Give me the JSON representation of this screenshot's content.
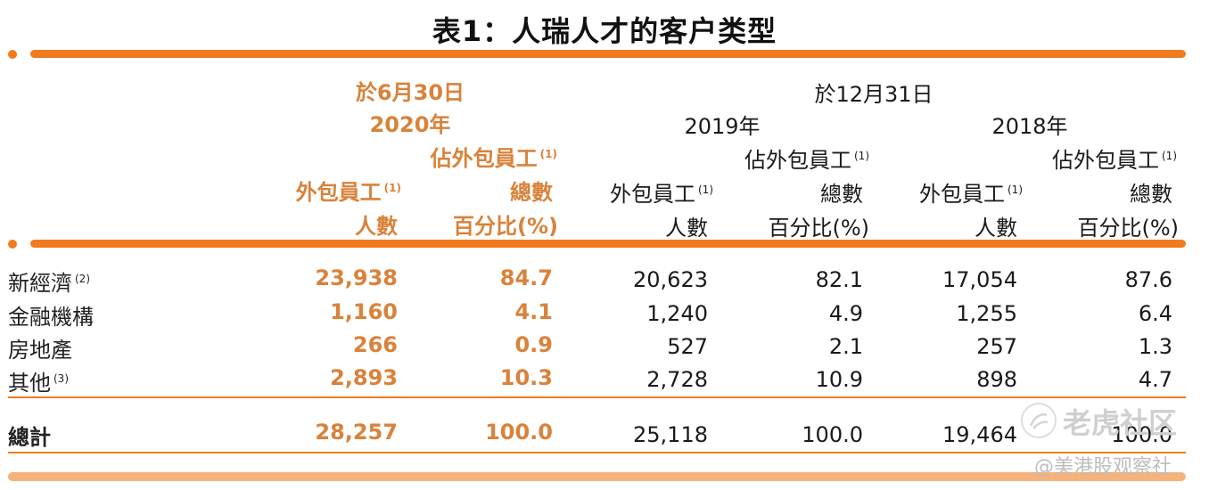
{
  "title": "表1：人瑞人才的客户类型",
  "header": {
    "col_2020_date": "於6月30日",
    "col_2020_year": "2020年",
    "col_hist_date": "於12月31日",
    "col_2019_year": "2019年",
    "col_2018_year": "2018年",
    "pct_line1": "佔外包員工",
    "pct_line2": "總數",
    "pct_line3": "百分比(%)",
    "cnt_line1": "外包員工",
    "cnt_line2": "人數",
    "note_marker": "(1)"
  },
  "rows": [
    {
      "label": "新經濟",
      "note": "(2)",
      "c2020": "23,938",
      "p2020": "84.7",
      "c2019": "20,623",
      "p2019": "82.1",
      "c2018": "17,054",
      "p2018": "87.6"
    },
    {
      "label": "金融機構",
      "note": "",
      "c2020": "1,160",
      "p2020": "4.1",
      "c2019": "1,240",
      "p2019": "4.9",
      "c2018": "1,255",
      "p2018": "6.4"
    },
    {
      "label": "房地產",
      "note": "",
      "c2020": "266",
      "p2020": "0.9",
      "c2019": "527",
      "p2019": "2.1",
      "c2018": "257",
      "p2018": "1.3"
    },
    {
      "label": "其他",
      "note": "(3)",
      "c2020": "2,893",
      "p2020": "10.3",
      "c2019": "2,728",
      "p2019": "10.9",
      "c2018": "898",
      "p2018": "4.7"
    }
  ],
  "total": {
    "label": "總計",
    "c2020": "28,257",
    "p2020": "100.0",
    "c2019": "25,118",
    "p2019": "100.0",
    "c2018": "19,464",
    "p2018": "100.0"
  },
  "watermark": {
    "brand": "老虎社区",
    "handle": "@美港股观察社"
  },
  "colors": {
    "accent": "#f07a1e",
    "highlight_text": "#d9823a"
  }
}
